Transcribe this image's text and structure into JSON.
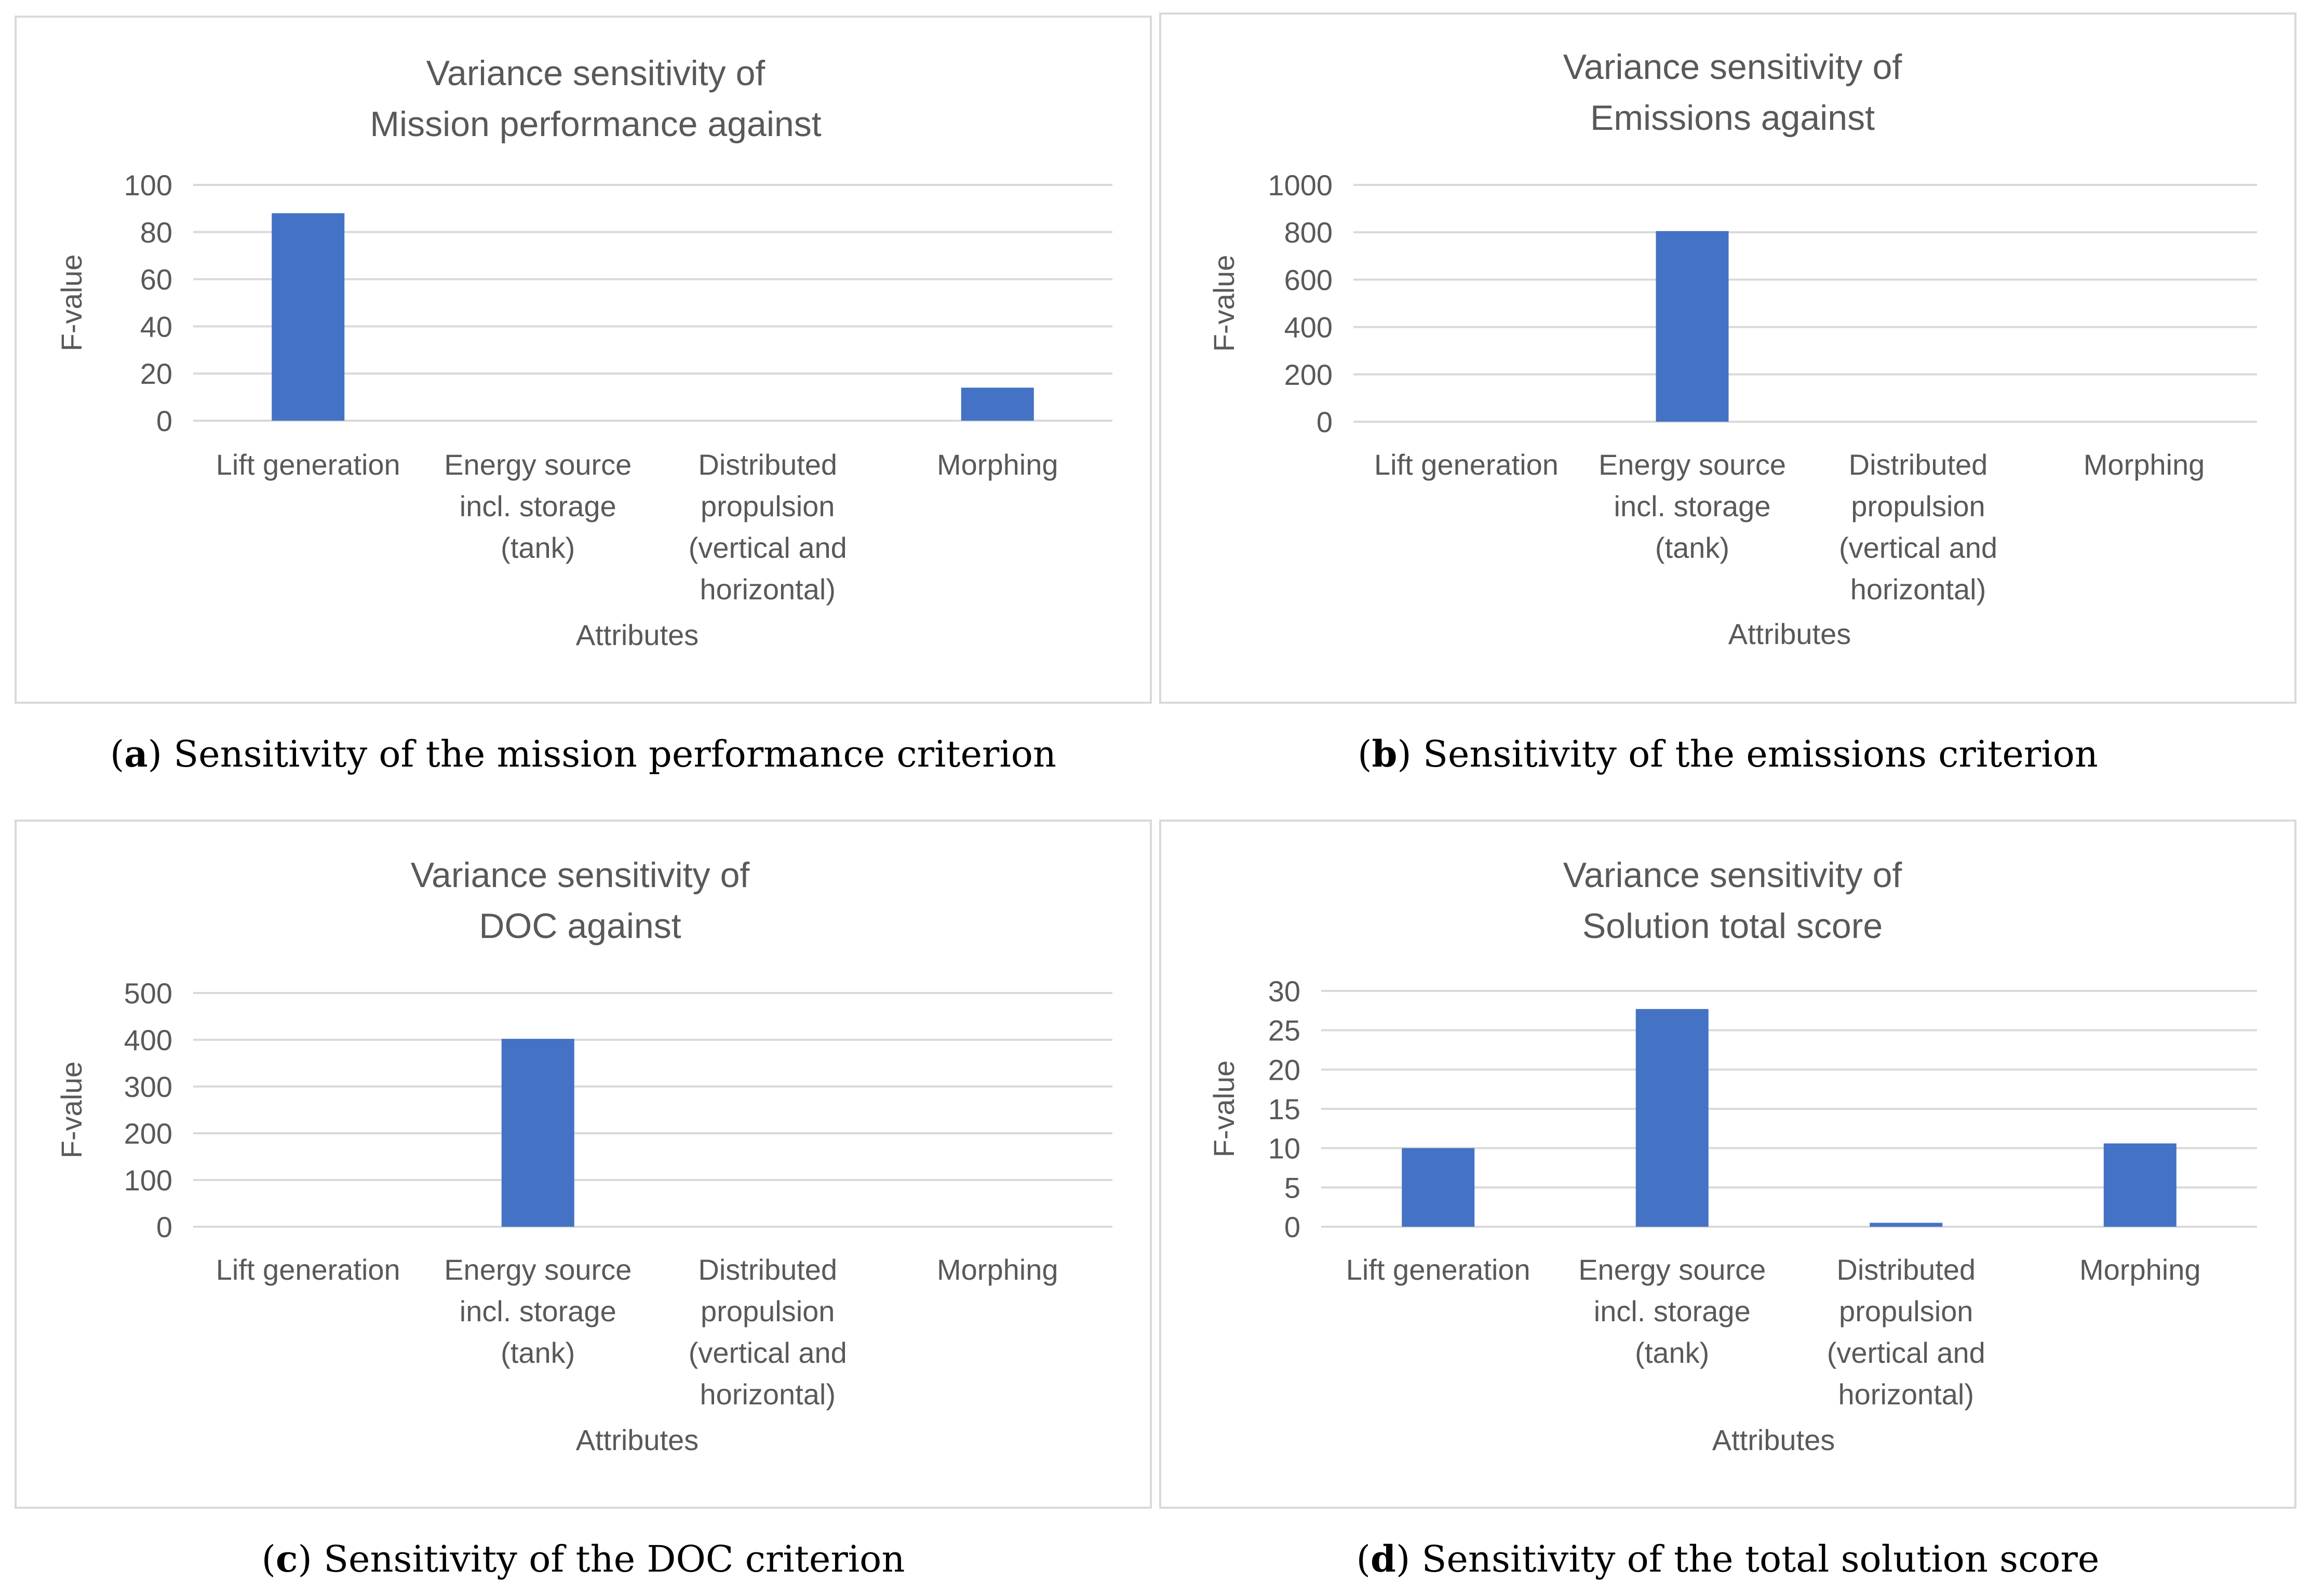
{
  "chart_data": [
    {
      "type": "bar",
      "title": [
        "Variance sensitivity of",
        "Mission performance against"
      ],
      "categories": [
        [
          "Lift generation"
        ],
        [
          "Energy source",
          "incl. storage",
          "(tank)"
        ],
        [
          "Distributed",
          "propulsion",
          "(vertical and",
          "horizontal)"
        ],
        [
          "Morphing"
        ]
      ],
      "values": [
        88,
        0,
        0,
        14
      ],
      "ylim": [
        0,
        100
      ],
      "yticks": [
        0,
        20,
        40,
        60,
        80,
        100
      ],
      "xlabel": "Attributes",
      "ylabel": "F-value",
      "caption_label": "a",
      "caption_text": "Sensitivity of the mission performance criterion"
    },
    {
      "type": "bar",
      "title": [
        "Variance sensitivity of",
        "Emissions against"
      ],
      "categories": [
        [
          "Lift generation"
        ],
        [
          "Energy source",
          "incl. storage",
          "(tank)"
        ],
        [
          "Distributed",
          "propulsion",
          "(vertical and",
          "horizontal)"
        ],
        [
          "Morphing"
        ]
      ],
      "values": [
        0,
        805,
        0,
        0
      ],
      "ylim": [
        0,
        1000
      ],
      "yticks": [
        0,
        200,
        400,
        600,
        800,
        1000
      ],
      "xlabel": "Attributes",
      "ylabel": "F-value",
      "caption_label": "b",
      "caption_text": "Sensitivity of the emissions criterion"
    },
    {
      "type": "bar",
      "title": [
        "Variance sensitivity of",
        "DOC against"
      ],
      "categories": [
        [
          "Lift generation"
        ],
        [
          "Energy source",
          "incl. storage",
          "(tank)"
        ],
        [
          "Distributed",
          "propulsion",
          "(vertical and",
          "horizontal)"
        ],
        [
          "Morphing"
        ]
      ],
      "values": [
        0,
        402,
        0,
        0
      ],
      "ylim": [
        0,
        500
      ],
      "yticks": [
        0,
        100,
        200,
        300,
        400,
        500
      ],
      "xlabel": "Attributes",
      "ylabel": "F-value",
      "caption_label": "c",
      "caption_text": "Sensitivity of the DOC criterion"
    },
    {
      "type": "bar",
      "title": [
        "Variance sensitivity of",
        "Solution total score"
      ],
      "categories": [
        [
          "Lift generation"
        ],
        [
          "Energy source",
          "incl. storage",
          "(tank)"
        ],
        [
          "Distributed",
          "propulsion",
          "(vertical and",
          "horizontal)"
        ],
        [
          "Morphing"
        ]
      ],
      "values": [
        10,
        27.7,
        0.5,
        10.6
      ],
      "ylim": [
        0,
        30
      ],
      "yticks": [
        0,
        5,
        10,
        15,
        20,
        25,
        30
      ],
      "xlabel": "Attributes",
      "ylabel": "F-value",
      "caption_label": "d",
      "caption_text": "Sensitivity of the total solution score"
    }
  ]
}
